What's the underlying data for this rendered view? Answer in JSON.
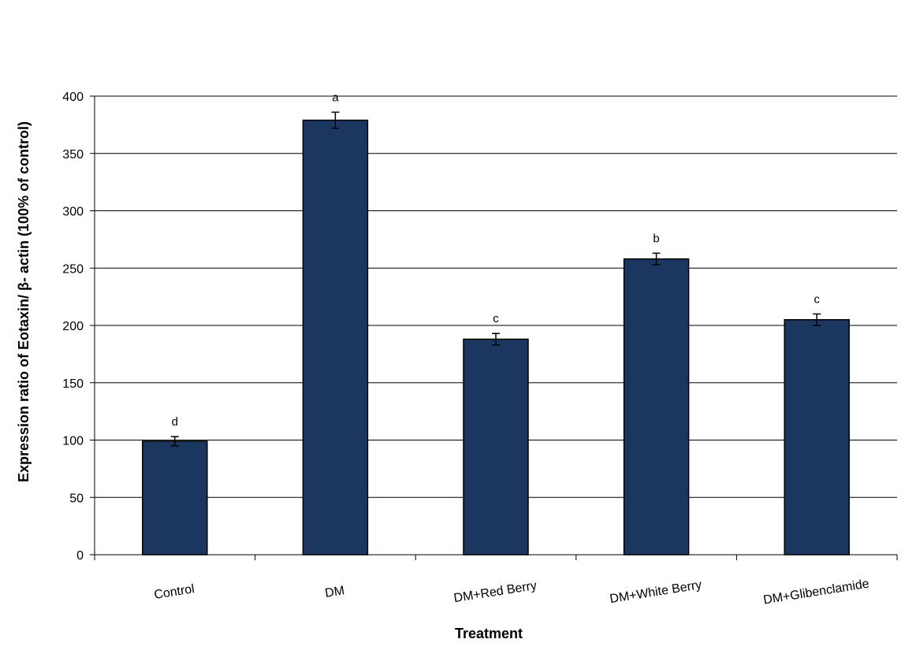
{
  "chart_data": {
    "type": "bar",
    "title": "",
    "xlabel": "Treatment",
    "ylabel": "Expression ratio of Eotaxin/ β- actin (100% of control)",
    "ylim": [
      0,
      400
    ],
    "yticks": [
      0,
      50,
      100,
      150,
      200,
      250,
      300,
      350,
      400
    ],
    "grid": true,
    "categories": [
      "Control",
      "DM",
      "DM+Red Berry",
      "DM+White Berry",
      "DM+Glibenclamide"
    ],
    "series": [
      {
        "values": [
          99,
          379,
          188,
          258,
          205
        ],
        "errors": [
          4,
          7,
          5,
          5,
          5
        ],
        "labels": [
          "d",
          "a",
          "c",
          "b",
          "c"
        ],
        "color": "#1b375f"
      }
    ]
  }
}
